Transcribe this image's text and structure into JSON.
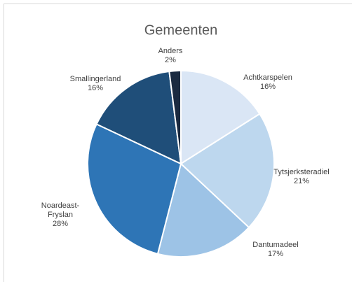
{
  "chart_data": {
    "type": "pie",
    "title": "Gemeenten",
    "categories": [
      "Achtkarspelen",
      "Tytsjerksteradiel",
      "Dantumadeel",
      "Noardeast-Fryslan",
      "Smallingerland",
      "Anders"
    ],
    "values": [
      16,
      21,
      17,
      28,
      16,
      2
    ],
    "value_labels": [
      "16%",
      "21%",
      "17%",
      "28%",
      "16%",
      "2%"
    ],
    "colors": [
      "#dae6f5",
      "#bdd7ee",
      "#9dc3e6",
      "#2e75b6",
      "#1f4e79",
      "#1a2a40"
    ]
  }
}
